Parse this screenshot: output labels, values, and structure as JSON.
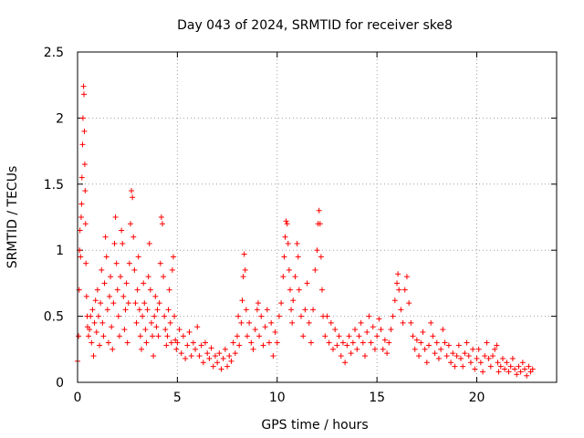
{
  "chart_data": {
    "type": "scatter",
    "title": "Day 043 of 2024, SRMTID for receiver ske8",
    "xlabel": "GPS time / hours",
    "ylabel": "SRMTID / TECUs",
    "xlim": [
      0,
      24
    ],
    "ylim": [
      0,
      2.5
    ],
    "xticks": [
      0,
      5,
      10,
      15,
      20
    ],
    "yticks": [
      0,
      0.5,
      1,
      1.5,
      2,
      2.5
    ],
    "xtick_labels": [
      "0",
      "5",
      "10",
      "15",
      "20"
    ],
    "ytick_labels": [
      "0",
      "0.5",
      "1",
      "1.5",
      "2",
      "2.5"
    ],
    "grid": true,
    "marker": "+",
    "series_color": "#ff0000",
    "series": [
      {
        "name": "SRMTID",
        "points": [
          [
            0.0,
            0.16
          ],
          [
            0.05,
            0.35
          ],
          [
            0.08,
            0.7
          ],
          [
            0.1,
            1.0
          ],
          [
            0.12,
            1.15
          ],
          [
            0.15,
            0.95
          ],
          [
            0.18,
            1.25
          ],
          [
            0.2,
            1.35
          ],
          [
            0.22,
            1.55
          ],
          [
            0.25,
            1.8
          ],
          [
            0.27,
            2.0
          ],
          [
            0.3,
            2.24
          ],
          [
            0.32,
            2.18
          ],
          [
            0.34,
            1.9
          ],
          [
            0.36,
            1.65
          ],
          [
            0.38,
            1.45
          ],
          [
            0.4,
            1.2
          ],
          [
            0.42,
            0.9
          ],
          [
            0.45,
            0.65
          ],
          [
            0.48,
            0.5
          ],
          [
            0.5,
            0.42
          ],
          [
            0.55,
            0.35
          ],
          [
            0.6,
            0.4
          ],
          [
            0.65,
            0.5
          ],
          [
            0.7,
            0.3
          ],
          [
            0.75,
            0.55
          ],
          [
            0.8,
            0.2
          ],
          [
            0.85,
            0.45
          ],
          [
            0.9,
            0.62
          ],
          [
            0.95,
            0.38
          ],
          [
            1.0,
            0.7
          ],
          [
            1.05,
            0.5
          ],
          [
            1.1,
            0.28
          ],
          [
            1.15,
            0.6
          ],
          [
            1.2,
            0.85
          ],
          [
            1.25,
            0.45
          ],
          [
            1.3,
            0.35
          ],
          [
            1.35,
            0.75
          ],
          [
            1.4,
            1.1
          ],
          [
            1.45,
            0.95
          ],
          [
            1.5,
            0.55
          ],
          [
            1.55,
            0.3
          ],
          [
            1.6,
            0.65
          ],
          [
            1.65,
            0.8
          ],
          [
            1.7,
            0.42
          ],
          [
            1.75,
            0.25
          ],
          [
            1.8,
            0.6
          ],
          [
            1.85,
            1.05
          ],
          [
            1.9,
            1.25
          ],
          [
            1.95,
            0.9
          ],
          [
            2.0,
            0.7
          ],
          [
            2.05,
            0.5
          ],
          [
            2.1,
            0.35
          ],
          [
            2.15,
            0.8
          ],
          [
            2.2,
            1.15
          ],
          [
            2.25,
            1.05
          ],
          [
            2.3,
            0.65
          ],
          [
            2.35,
            0.4
          ],
          [
            2.4,
            0.55
          ],
          [
            2.45,
            0.75
          ],
          [
            2.5,
            0.3
          ],
          [
            2.55,
            0.6
          ],
          [
            2.6,
            0.9
          ],
          [
            2.65,
            1.2
          ],
          [
            2.7,
            1.45
          ],
          [
            2.75,
            1.4
          ],
          [
            2.8,
            1.1
          ],
          [
            2.85,
            0.85
          ],
          [
            2.9,
            0.6
          ],
          [
            2.95,
            0.45
          ],
          [
            3.0,
            0.7
          ],
          [
            3.05,
            0.95
          ],
          [
            3.1,
            0.55
          ],
          [
            3.15,
            0.35
          ],
          [
            3.2,
            0.25
          ],
          [
            3.25,
            0.5
          ],
          [
            3.3,
            0.75
          ],
          [
            3.35,
            0.6
          ],
          [
            3.4,
            0.4
          ],
          [
            3.45,
            0.3
          ],
          [
            3.5,
            0.55
          ],
          [
            3.55,
            0.8
          ],
          [
            3.6,
            1.05
          ],
          [
            3.65,
            0.7
          ],
          [
            3.7,
            0.45
          ],
          [
            3.75,
            0.35
          ],
          [
            3.8,
            0.2
          ],
          [
            3.85,
            0.5
          ],
          [
            3.9,
            0.65
          ],
          [
            3.95,
            0.42
          ],
          [
            4.0,
            0.55
          ],
          [
            4.05,
            0.35
          ],
          [
            4.1,
            0.6
          ],
          [
            4.15,
            0.9
          ],
          [
            4.2,
            1.25
          ],
          [
            4.25,
            1.2
          ],
          [
            4.3,
            0.8
          ],
          [
            4.35,
            0.5
          ],
          [
            4.4,
            0.4
          ],
          [
            4.45,
            0.28
          ],
          [
            4.5,
            0.35
          ],
          [
            4.55,
            0.55
          ],
          [
            4.6,
            0.7
          ],
          [
            4.65,
            0.45
          ],
          [
            4.7,
            0.3
          ],
          [
            4.75,
            0.85
          ],
          [
            4.8,
            0.95
          ],
          [
            4.85,
            0.5
          ],
          [
            4.9,
            0.32
          ],
          [
            4.95,
            0.25
          ],
          [
            5.0,
            0.3
          ],
          [
            5.1,
            0.4
          ],
          [
            5.2,
            0.22
          ],
          [
            5.3,
            0.35
          ],
          [
            5.4,
            0.18
          ],
          [
            5.5,
            0.28
          ],
          [
            5.6,
            0.38
          ],
          [
            5.7,
            0.2
          ],
          [
            5.8,
            0.3
          ],
          [
            5.9,
            0.25
          ],
          [
            6.0,
            0.42
          ],
          [
            6.1,
            0.2
          ],
          [
            6.2,
            0.28
          ],
          [
            6.3,
            0.15
          ],
          [
            6.4,
            0.3
          ],
          [
            6.5,
            0.22
          ],
          [
            6.6,
            0.18
          ],
          [
            6.7,
            0.26
          ],
          [
            6.8,
            0.12
          ],
          [
            6.9,
            0.2
          ],
          [
            7.0,
            0.15
          ],
          [
            7.1,
            0.22
          ],
          [
            7.2,
            0.1
          ],
          [
            7.3,
            0.18
          ],
          [
            7.4,
            0.25
          ],
          [
            7.5,
            0.12
          ],
          [
            7.6,
            0.2
          ],
          [
            7.7,
            0.16
          ],
          [
            7.8,
            0.3
          ],
          [
            7.9,
            0.22
          ],
          [
            8.0,
            0.35
          ],
          [
            8.05,
            0.5
          ],
          [
            8.1,
            0.28
          ],
          [
            8.2,
            0.45
          ],
          [
            8.25,
            0.62
          ],
          [
            8.3,
            0.8
          ],
          [
            8.35,
            0.97
          ],
          [
            8.4,
            0.85
          ],
          [
            8.45,
            0.55
          ],
          [
            8.5,
            0.35
          ],
          [
            8.6,
            0.45
          ],
          [
            8.7,
            0.3
          ],
          [
            8.8,
            0.25
          ],
          [
            8.9,
            0.4
          ],
          [
            9.0,
            0.55
          ],
          [
            9.05,
            0.6
          ],
          [
            9.1,
            0.35
          ],
          [
            9.2,
            0.5
          ],
          [
            9.3,
            0.28
          ],
          [
            9.4,
            0.42
          ],
          [
            9.5,
            0.55
          ],
          [
            9.6,
            0.3
          ],
          [
            9.7,
            0.45
          ],
          [
            9.8,
            0.2
          ],
          [
            9.9,
            0.38
          ],
          [
            10.0,
            0.3
          ],
          [
            10.1,
            0.5
          ],
          [
            10.2,
            0.6
          ],
          [
            10.3,
            0.8
          ],
          [
            10.35,
            0.95
          ],
          [
            10.4,
            1.1
          ],
          [
            10.45,
            1.22
          ],
          [
            10.5,
            1.2
          ],
          [
            10.55,
            1.05
          ],
          [
            10.6,
            0.85
          ],
          [
            10.65,
            0.7
          ],
          [
            10.7,
            0.55
          ],
          [
            10.75,
            0.45
          ],
          [
            10.8,
            0.62
          ],
          [
            10.9,
            0.8
          ],
          [
            11.0,
            1.05
          ],
          [
            11.05,
            0.95
          ],
          [
            11.1,
            0.7
          ],
          [
            11.2,
            0.5
          ],
          [
            11.3,
            0.35
          ],
          [
            11.4,
            0.55
          ],
          [
            11.5,
            0.75
          ],
          [
            11.6,
            0.45
          ],
          [
            11.7,
            0.3
          ],
          [
            11.8,
            0.55
          ],
          [
            11.9,
            0.85
          ],
          [
            12.0,
            1.0
          ],
          [
            12.05,
            1.2
          ],
          [
            12.1,
            1.3
          ],
          [
            12.15,
            1.2
          ],
          [
            12.2,
            0.95
          ],
          [
            12.25,
            0.7
          ],
          [
            12.3,
            0.5
          ],
          [
            12.4,
            0.35
          ],
          [
            12.5,
            0.5
          ],
          [
            12.6,
            0.3
          ],
          [
            12.7,
            0.45
          ],
          [
            12.8,
            0.25
          ],
          [
            12.9,
            0.4
          ],
          [
            13.0,
            0.28
          ],
          [
            13.1,
            0.35
          ],
          [
            13.2,
            0.2
          ],
          [
            13.3,
            0.3
          ],
          [
            13.4,
            0.15
          ],
          [
            13.5,
            0.28
          ],
          [
            13.6,
            0.35
          ],
          [
            13.7,
            0.22
          ],
          [
            13.8,
            0.3
          ],
          [
            13.9,
            0.4
          ],
          [
            14.0,
            0.25
          ],
          [
            14.1,
            0.35
          ],
          [
            14.2,
            0.45
          ],
          [
            14.3,
            0.3
          ],
          [
            14.4,
            0.2
          ],
          [
            14.5,
            0.38
          ],
          [
            14.6,
            0.5
          ],
          [
            14.7,
            0.3
          ],
          [
            14.8,
            0.42
          ],
          [
            14.9,
            0.25
          ],
          [
            15.0,
            0.35
          ],
          [
            15.1,
            0.48
          ],
          [
            15.2,
            0.4
          ],
          [
            15.3,
            0.25
          ],
          [
            15.4,
            0.32
          ],
          [
            15.5,
            0.22
          ],
          [
            15.6,
            0.3
          ],
          [
            15.7,
            0.4
          ],
          [
            15.8,
            0.5
          ],
          [
            15.9,
            0.62
          ],
          [
            16.0,
            0.75
          ],
          [
            16.05,
            0.82
          ],
          [
            16.1,
            0.7
          ],
          [
            16.2,
            0.55
          ],
          [
            16.3,
            0.45
          ],
          [
            16.4,
            0.7
          ],
          [
            16.5,
            0.8
          ],
          [
            16.6,
            0.6
          ],
          [
            16.7,
            0.45
          ],
          [
            16.8,
            0.35
          ],
          [
            16.9,
            0.25
          ],
          [
            17.0,
            0.32
          ],
          [
            17.1,
            0.2
          ],
          [
            17.2,
            0.3
          ],
          [
            17.3,
            0.38
          ],
          [
            17.4,
            0.25
          ],
          [
            17.5,
            0.15
          ],
          [
            17.6,
            0.28
          ],
          [
            17.7,
            0.45
          ],
          [
            17.8,
            0.35
          ],
          [
            17.9,
            0.22
          ],
          [
            18.0,
            0.3
          ],
          [
            18.1,
            0.18
          ],
          [
            18.2,
            0.25
          ],
          [
            18.3,
            0.4
          ],
          [
            18.4,
            0.3
          ],
          [
            18.5,
            0.2
          ],
          [
            18.6,
            0.28
          ],
          [
            18.7,
            0.15
          ],
          [
            18.8,
            0.22
          ],
          [
            18.9,
            0.12
          ],
          [
            19.0,
            0.2
          ],
          [
            19.1,
            0.28
          ],
          [
            19.2,
            0.18
          ],
          [
            19.3,
            0.12
          ],
          [
            19.4,
            0.22
          ],
          [
            19.5,
            0.3
          ],
          [
            19.6,
            0.2
          ],
          [
            19.7,
            0.15
          ],
          [
            19.8,
            0.25
          ],
          [
            19.9,
            0.1
          ],
          [
            20.0,
            0.18
          ],
          [
            20.1,
            0.25
          ],
          [
            20.2,
            0.15
          ],
          [
            20.3,
            0.08
          ],
          [
            20.4,
            0.2
          ],
          [
            20.5,
            0.3
          ],
          [
            20.6,
            0.18
          ],
          [
            20.7,
            0.12
          ],
          [
            20.8,
            0.2
          ],
          [
            20.9,
            0.25
          ],
          [
            21.0,
            0.28
          ],
          [
            21.05,
            0.15
          ],
          [
            21.1,
            0.08
          ],
          [
            21.2,
            0.12
          ],
          [
            21.3,
            0.18
          ],
          [
            21.4,
            0.1
          ],
          [
            21.5,
            0.15
          ],
          [
            21.6,
            0.08
          ],
          [
            21.7,
            0.12
          ],
          [
            21.8,
            0.18
          ],
          [
            21.9,
            0.1
          ],
          [
            22.0,
            0.06
          ],
          [
            22.1,
            0.12
          ],
          [
            22.2,
            0.08
          ],
          [
            22.3,
            0.15
          ],
          [
            22.4,
            0.1
          ],
          [
            22.5,
            0.05
          ],
          [
            22.6,
            0.12
          ],
          [
            22.7,
            0.08
          ],
          [
            22.8,
            0.1
          ]
        ]
      }
    ]
  }
}
